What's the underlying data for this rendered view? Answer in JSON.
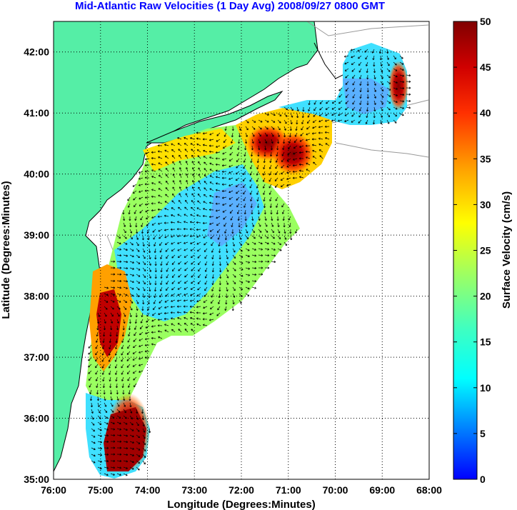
{
  "title": "Mid-Atlantic Raw Velocities (1 Day Avg) 2008/09/27 0800 GMT",
  "x_axis_label": "Longitude (Degrees:Minutes)",
  "y_axis_label": "Latitude (Degrees:Minutes)",
  "x_ticks": [
    "76:00",
    "75:00",
    "74:00",
    "73:00",
    "72:00",
    "71:00",
    "70:00",
    "69:00",
    "68:00"
  ],
  "y_ticks": [
    "42:00",
    "41:00",
    "40:00",
    "39:00",
    "38:00",
    "37:00",
    "36:00",
    "35:00"
  ],
  "colorbar": {
    "label": "Surface Velocity (cm/s)",
    "ticks": [
      "50",
      "45",
      "40",
      "35",
      "30",
      "25",
      "20",
      "15",
      "10",
      "5",
      "0"
    ],
    "range": [
      0,
      50
    ],
    "colormap": "jet"
  },
  "colors": {
    "land": "#55eea6",
    "coastline": "#000000",
    "bathymetry": "#999999",
    "grid": "#000000",
    "title": "#0000ff"
  },
  "map_extent": {
    "lon": [
      -76,
      -68
    ],
    "lat": [
      35,
      42.5
    ]
  }
}
